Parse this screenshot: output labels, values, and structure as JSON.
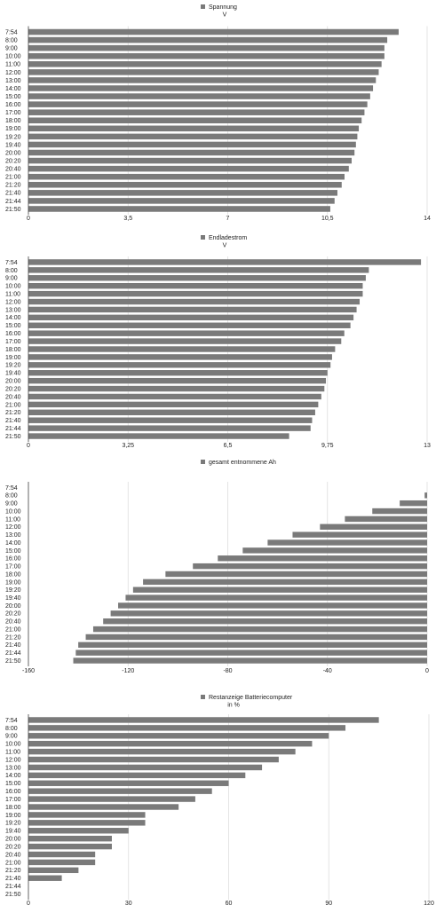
{
  "colors": {
    "bar": "#7a7a7a",
    "grid": "#dddddd",
    "axis": "#444444",
    "text": "#222222"
  },
  "chart_data": [
    {
      "type": "bar",
      "orientation": "horizontal",
      "legend": {
        "position": "top-center",
        "entries": [
          "Spannung",
          "V"
        ]
      },
      "categories": [
        "7:54",
        "8:00",
        "9:00",
        "10:00",
        "11:00",
        "12:00",
        "13:00",
        "14:00",
        "15:00",
        "16:00",
        "17:00",
        "18:00",
        "19:00",
        "19:20",
        "19:40",
        "20:00",
        "20:20",
        "20:40",
        "21:00",
        "21:20",
        "21:40",
        "21:44",
        "21:50"
      ],
      "values": [
        13.0,
        12.6,
        12.5,
        12.5,
        12.4,
        12.3,
        12.2,
        12.1,
        12.0,
        11.9,
        11.8,
        11.7,
        11.6,
        11.55,
        11.5,
        11.45,
        11.35,
        11.25,
        11.1,
        11.0,
        10.85,
        10.75,
        10.6
      ],
      "xlim": [
        0,
        14
      ],
      "xticks": [
        0,
        3.5,
        7,
        10.5,
        14
      ],
      "xtick_labels": [
        "0",
        "3,5",
        "7",
        "10,5",
        "14"
      ],
      "grid": true
    },
    {
      "type": "bar",
      "orientation": "horizontal",
      "legend": {
        "position": "top-center",
        "entries": [
          "Endladestrom",
          "V"
        ]
      },
      "categories": [
        "7:54",
        "8:00",
        "9:00",
        "10:00",
        "11:00",
        "12:00",
        "13:00",
        "14:00",
        "15:00",
        "16:00",
        "17:00",
        "18:00",
        "19:00",
        "19:20",
        "19:40",
        "20:00",
        "20:20",
        "20:40",
        "21:00",
        "21:20",
        "21:40",
        "21:44",
        "21:50"
      ],
      "values": [
        12.8,
        11.1,
        11.0,
        10.9,
        10.9,
        10.8,
        10.7,
        10.6,
        10.5,
        10.3,
        10.2,
        10.0,
        9.9,
        9.85,
        9.75,
        9.7,
        9.65,
        9.55,
        9.45,
        9.35,
        9.25,
        9.2,
        8.5
      ],
      "xlim": [
        0,
        13
      ],
      "xticks": [
        0,
        3.25,
        6.5,
        9.75,
        13
      ],
      "xtick_labels": [
        "0",
        "3,25",
        "6,5",
        "9,75",
        "13"
      ],
      "grid": true
    },
    {
      "type": "bar",
      "orientation": "horizontal",
      "legend": {
        "position": "top-center",
        "entries": [
          "gesamt entnommene Ah"
        ]
      },
      "categories": [
        "7:54",
        "8:00",
        "9:00",
        "10:00",
        "11:00",
        "12:00",
        "13:00",
        "14:00",
        "15:00",
        "16:00",
        "17:00",
        "18:00",
        "19:00",
        "19:20",
        "19:40",
        "20:00",
        "20:20",
        "20:40",
        "21:00",
        "21:20",
        "21:40",
        "21:44",
        "21:50"
      ],
      "values": [
        0,
        -1,
        -11,
        -22,
        -33,
        -43,
        -54,
        -64,
        -74,
        -84,
        -94,
        -105,
        -114,
        -118,
        -121,
        -124,
        -127,
        -130,
        -134,
        -137,
        -140,
        -141,
        -142
      ],
      "xlim": [
        -160,
        0
      ],
      "xticks": [
        -160,
        -120,
        -80,
        -40,
        0
      ],
      "xtick_labels": [
        "-160",
        "-120",
        "-80",
        "-40",
        "0"
      ],
      "grid": true
    },
    {
      "type": "bar",
      "orientation": "horizontal",
      "legend": {
        "position": "top-center",
        "entries": [
          "Restanzeige Batteriecomputer",
          "in %"
        ]
      },
      "categories": [
        "7:54",
        "8:00",
        "9:00",
        "10:00",
        "11:00",
        "12:00",
        "13:00",
        "14:00",
        "15:00",
        "16:00",
        "17:00",
        "18:00",
        "19:00",
        "19:20",
        "19:40",
        "20:00",
        "20:20",
        "20:40",
        "21:00",
        "21:20",
        "21:40",
        "21:44",
        "21:50"
      ],
      "values": [
        105,
        95,
        90,
        85,
        80,
        75,
        70,
        65,
        60,
        55,
        50,
        45,
        35,
        35,
        30,
        25,
        25,
        20,
        20,
        15,
        10,
        0,
        0
      ],
      "xlim": [
        0,
        120
      ],
      "xticks": [
        0,
        30,
        60,
        90,
        120
      ],
      "xtick_labels": [
        "0",
        "30",
        "60",
        "90",
        "120"
      ],
      "grid": true
    }
  ]
}
